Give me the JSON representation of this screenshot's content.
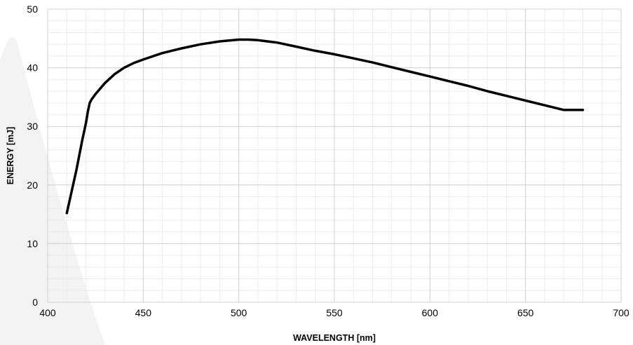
{
  "chart_data": {
    "type": "line",
    "title": "",
    "xlabel": "WAVELENGTH [nm]",
    "ylabel": "ENERGY [mJ]",
    "xlim": [
      400,
      700
    ],
    "ylim": [
      0,
      50
    ],
    "x_ticks": [
      "400",
      "450",
      "500",
      "550",
      "600",
      "650",
      "700"
    ],
    "y_ticks": [
      "0",
      "10",
      "20",
      "30",
      "40",
      "50"
    ],
    "grid": true,
    "legend": "none",
    "colors": {
      "line": "#000000",
      "major_grid": "#d0d0d0",
      "minor_grid": "#ececec",
      "watermark": "#f3f3f3"
    },
    "series": [
      {
        "x": [
          410,
          415,
          418,
          420,
          421,
          422,
          423,
          425,
          430,
          435,
          440,
          445,
          450,
          460,
          470,
          480,
          490,
          500,
          505,
          510,
          520,
          530,
          540,
          550,
          560,
          570,
          580,
          590,
          600,
          610,
          620,
          630,
          640,
          650,
          660,
          670,
          680
        ],
        "values": [
          15.2,
          22.5,
          27.5,
          30.5,
          32.5,
          34.0,
          34.6,
          35.5,
          37.4,
          38.9,
          40.0,
          40.8,
          41.4,
          42.5,
          43.3,
          44.0,
          44.5,
          44.8,
          44.8,
          44.7,
          44.3,
          43.6,
          42.9,
          42.3,
          41.6,
          40.9,
          40.1,
          39.3,
          38.5,
          37.7,
          36.9,
          36.0,
          35.2,
          34.4,
          33.6,
          32.8,
          32.8
        ]
      }
    ]
  }
}
